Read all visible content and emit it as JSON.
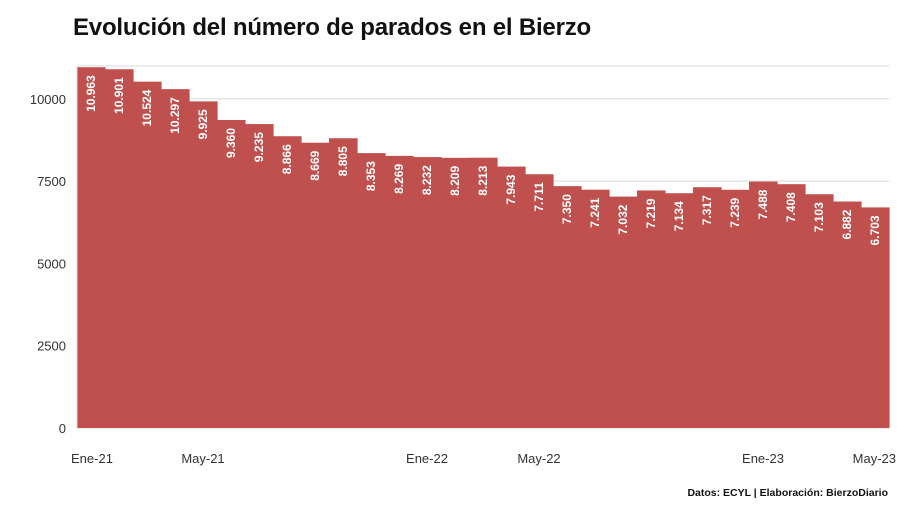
{
  "title": "Evolución del número de parados en el Bierzo",
  "source": "Datos: ECYL | Elaboración: BierzoDiario",
  "colors": {
    "bar": "#c0504d",
    "grid": "#d9d9d9",
    "text": "#111111"
  },
  "chart_data": {
    "type": "area",
    "title": "Evolución del número de parados en el Bierzo",
    "xlabel": "",
    "ylabel": "",
    "ylim": [
      0,
      11000
    ],
    "yticks": [
      0,
      2500,
      5000,
      7500,
      10000
    ],
    "grid": true,
    "x": [
      "Ene-21",
      "Feb-21",
      "Mar-21",
      "Abr-21",
      "May-21",
      "Jun-21",
      "Jul-21",
      "Ago-21",
      "Sep-21",
      "Oct-21",
      "Nov-21",
      "Dic-21",
      "Ene-22",
      "Feb-22",
      "Mar-22",
      "Abr-22",
      "May-22",
      "Jun-22",
      "Jul-22",
      "Ago-22",
      "Sep-22",
      "Oct-22",
      "Nov-22",
      "Dic-22",
      "Ene-23",
      "Feb-23",
      "Mar-23",
      "Abr-23",
      "May-23"
    ],
    "values": [
      10963,
      10901,
      10524,
      10297,
      9925,
      9360,
      9235,
      8866,
      8669,
      8805,
      8353,
      8269,
      8232,
      8209,
      8213,
      7943,
      7711,
      7350,
      7241,
      7032,
      7219,
      7134,
      7317,
      7239,
      7488,
      7408,
      7103,
      6882,
      6703
    ],
    "data_labels": [
      "10.963",
      "10.901",
      "10.524",
      "10.297",
      "9.925",
      "9.360",
      "9.235",
      "8.866",
      "8.669",
      "8.805",
      "8.353",
      "8.269",
      "8.232",
      "8.209",
      "8.213",
      "7.943",
      "7.711",
      "7.350",
      "7.241",
      "7.032",
      "7.219",
      "7.134",
      "7.317",
      "7.239",
      "7.488",
      "7.408",
      "7.103",
      "6.882",
      "6.703"
    ],
    "xtick_labels": [
      {
        "index": 0,
        "label": "Ene-21"
      },
      {
        "index": 4,
        "label": "May-21"
      },
      {
        "index": 12,
        "label": "Ene-22"
      },
      {
        "index": 16,
        "label": "May-22"
      },
      {
        "index": 24,
        "label": "Ene-23"
      },
      {
        "index": 28,
        "label": "May-23"
      }
    ]
  }
}
